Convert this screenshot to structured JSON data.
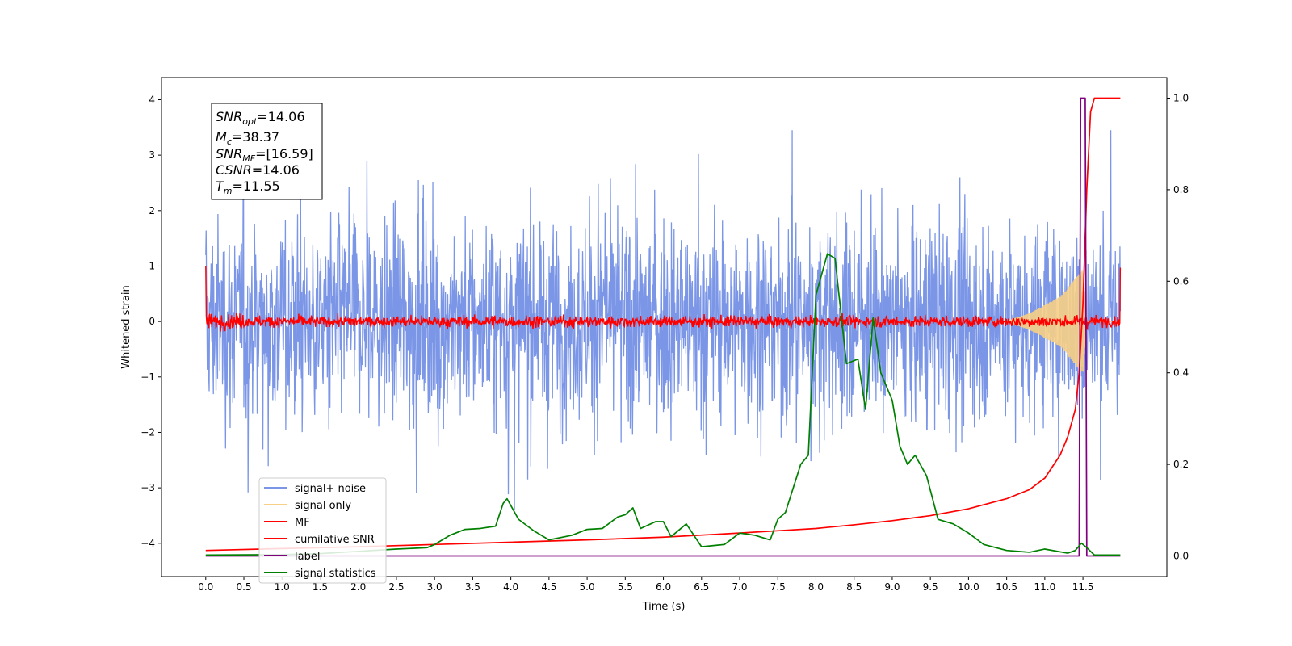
{
  "chart_data": {
    "type": "line",
    "xlabel": "Time (s)",
    "ylabel": "Whitened strain",
    "xlim": [
      -0.58,
      12.6
    ],
    "ylim": [
      -4.6,
      4.4
    ],
    "ylim_right": [
      -0.045,
      1.045
    ],
    "x_ticks": [
      "0.0",
      "0.5",
      "1.0",
      "1.5",
      "2.0",
      "2.5",
      "3.0",
      "3.5",
      "4.0",
      "4.5",
      "5.0",
      "5.5",
      "6.0",
      "6.5",
      "7.0",
      "7.5",
      "8.0",
      "8.5",
      "9.0",
      "9.5",
      "10.0",
      "10.5",
      "11.0",
      "11.5"
    ],
    "y_ticks": [
      "4",
      "3",
      "2",
      "1",
      "0",
      "−1",
      "−2",
      "−3",
      "−4"
    ],
    "y_ticks_right": [
      "1.0",
      "0.8",
      "0.6",
      "0.4",
      "0.2",
      "0.0"
    ],
    "grid": false,
    "legend_position": "lower-left",
    "annotation": {
      "lines": [
        {
          "main": "SNR",
          "sub": "opt",
          "value": "=14.06"
        },
        {
          "main": "M",
          "sub": "c",
          "value": "=38.37"
        },
        {
          "main": "SNR",
          "sub": "MF",
          "value": "=[16.59]"
        },
        {
          "main": "CSNR",
          "sub": "",
          "value": "=14.06"
        },
        {
          "main": "T",
          "sub": "m",
          "value": "=11.55"
        }
      ]
    },
    "series": [
      {
        "name": "signal+ noise",
        "axis": "left",
        "color": "#7b96e6",
        "x_range": [
          0.0,
          11.99
        ],
        "typical_amplitude": 1.5,
        "peak_amplitude": 3.45,
        "min_value": -3.4
      },
      {
        "name": "signal only",
        "axis": "left",
        "color": "#f7cf86",
        "points": [
          [
            0.0,
            0.0
          ],
          [
            10.5,
            0.0
          ],
          [
            10.8,
            0.15
          ],
          [
            11.0,
            0.3
          ],
          [
            11.2,
            0.45
          ],
          [
            11.35,
            0.7
          ],
          [
            11.5,
            0.95
          ],
          [
            11.55,
            0.0
          ],
          [
            11.99,
            0.0
          ]
        ]
      },
      {
        "name": "MF",
        "axis": "left",
        "color": "#ff0000",
        "x_range": [
          0.0,
          11.99
        ],
        "typical_amplitude": 0.1,
        "endpoints": [
          1.0,
          0.97
        ]
      },
      {
        "name": "cumilative SNR",
        "axis": "right",
        "color": "#ff0000",
        "points": [
          [
            0.0,
            0.012
          ],
          [
            1.0,
            0.016
          ],
          [
            2.0,
            0.02
          ],
          [
            3.0,
            0.025
          ],
          [
            4.0,
            0.03
          ],
          [
            5.0,
            0.035
          ],
          [
            6.0,
            0.041
          ],
          [
            7.0,
            0.05
          ],
          [
            7.5,
            0.055
          ],
          [
            8.0,
            0.06
          ],
          [
            8.5,
            0.068
          ],
          [
            9.0,
            0.077
          ],
          [
            9.5,
            0.088
          ],
          [
            10.0,
            0.103
          ],
          [
            10.5,
            0.125
          ],
          [
            10.8,
            0.145
          ],
          [
            11.0,
            0.17
          ],
          [
            11.2,
            0.22
          ],
          [
            11.3,
            0.26
          ],
          [
            11.4,
            0.32
          ],
          [
            11.45,
            0.4
          ],
          [
            11.5,
            0.55
          ],
          [
            11.55,
            0.8
          ],
          [
            11.6,
            0.97
          ],
          [
            11.65,
            1.0
          ],
          [
            11.99,
            1.0
          ]
        ]
      },
      {
        "name": "label",
        "axis": "right",
        "color": "#800080",
        "points": [
          [
            0.0,
            0.0
          ],
          [
            11.45,
            0.0
          ],
          [
            11.47,
            1.0
          ],
          [
            11.53,
            1.0
          ],
          [
            11.55,
            0.0
          ],
          [
            11.99,
            0.0
          ]
        ]
      },
      {
        "name": "signal statistics",
        "axis": "right",
        "color": "#008000",
        "points": [
          [
            0.0,
            0.002
          ],
          [
            1.0,
            0.003
          ],
          [
            1.5,
            0.005
          ],
          [
            2.0,
            0.01
          ],
          [
            2.5,
            0.015
          ],
          [
            2.9,
            0.018
          ],
          [
            3.0,
            0.025
          ],
          [
            3.2,
            0.045
          ],
          [
            3.4,
            0.058
          ],
          [
            3.6,
            0.06
          ],
          [
            3.8,
            0.065
          ],
          [
            3.9,
            0.115
          ],
          [
            3.95,
            0.125
          ],
          [
            4.1,
            0.08
          ],
          [
            4.3,
            0.055
          ],
          [
            4.5,
            0.035
          ],
          [
            4.8,
            0.045
          ],
          [
            5.0,
            0.058
          ],
          [
            5.2,
            0.06
          ],
          [
            5.4,
            0.085
          ],
          [
            5.5,
            0.09
          ],
          [
            5.6,
            0.105
          ],
          [
            5.7,
            0.06
          ],
          [
            5.9,
            0.075
          ],
          [
            6.0,
            0.075
          ],
          [
            6.1,
            0.042
          ],
          [
            6.3,
            0.07
          ],
          [
            6.5,
            0.02
          ],
          [
            6.8,
            0.025
          ],
          [
            7.0,
            0.05
          ],
          [
            7.2,
            0.045
          ],
          [
            7.4,
            0.035
          ],
          [
            7.5,
            0.08
          ],
          [
            7.6,
            0.095
          ],
          [
            7.8,
            0.2
          ],
          [
            7.9,
            0.22
          ],
          [
            8.0,
            0.57
          ],
          [
            8.15,
            0.66
          ],
          [
            8.25,
            0.65
          ],
          [
            8.4,
            0.42
          ],
          [
            8.55,
            0.43
          ],
          [
            8.65,
            0.32
          ],
          [
            8.75,
            0.52
          ],
          [
            8.85,
            0.4
          ],
          [
            9.0,
            0.34
          ],
          [
            9.1,
            0.24
          ],
          [
            9.2,
            0.2
          ],
          [
            9.3,
            0.22
          ],
          [
            9.45,
            0.175
          ],
          [
            9.6,
            0.08
          ],
          [
            9.8,
            0.07
          ],
          [
            10.0,
            0.05
          ],
          [
            10.2,
            0.025
          ],
          [
            10.5,
            0.012
          ],
          [
            10.8,
            0.008
          ],
          [
            11.0,
            0.015
          ],
          [
            11.3,
            0.006
          ],
          [
            11.4,
            0.012
          ],
          [
            11.48,
            0.028
          ],
          [
            11.55,
            0.018
          ],
          [
            11.65,
            0.002
          ],
          [
            11.99,
            0.002
          ]
        ]
      }
    ]
  }
}
